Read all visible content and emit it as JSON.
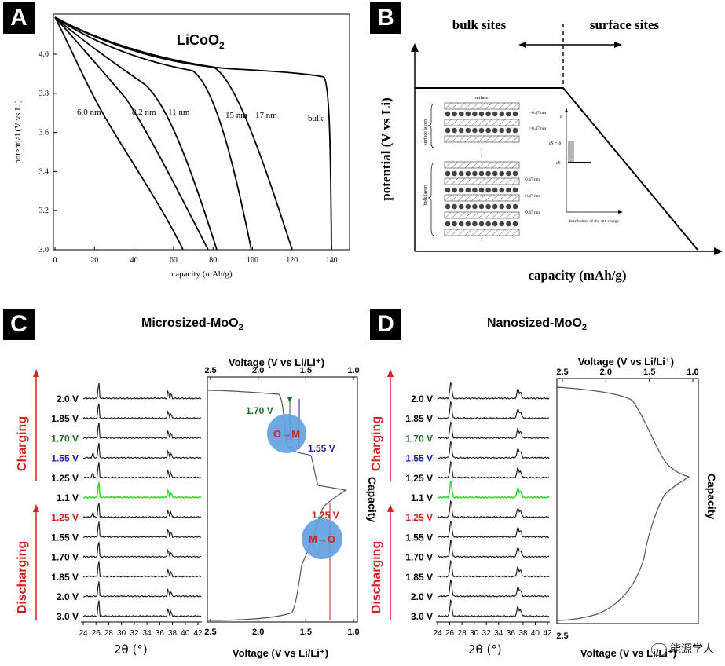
{
  "panelA": {
    "tag": "A",
    "title": "LiCoO",
    "title_sub": "2",
    "xlabel": "capacity (mAh/g)",
    "ylabel": "potential (V vs Li)",
    "xticks": [
      "0",
      "20",
      "40",
      "60",
      "80",
      "100",
      "120",
      "140"
    ],
    "yticks": [
      "3.0",
      "3.2",
      "3.4",
      "3.6",
      "3.8",
      "4.0"
    ],
    "curve_labels": [
      "6.0 nm",
      "8.2 nm",
      "11 nm",
      "15 nm",
      "17 nm",
      "bulk"
    ]
  },
  "panelB": {
    "tag": "B",
    "bulk_label": "bulk sites",
    "surface_label": "surface sites",
    "xlabel": "capacity (mAh/g)",
    "ylabel": "potential (V vs Li)",
    "inset": {
      "surface": "surface",
      "surface_layers": "surface layers",
      "bulk_layers": "bulk layers",
      "spacings": [
        ">0.47 nm",
        ">0.47 nm",
        "0.47 nm",
        "0.47 nm",
        "0.47 nm"
      ],
      "eps": "ε",
      "eps_sd": "εS + δ",
      "eps_s": "εS",
      "dist_label": "distribution of the site energy"
    }
  },
  "panelC": {
    "tag": "C",
    "title": "Microsized-MoO",
    "title_sub": "2",
    "top_axis_label": "Voltage (V vs Li/Li⁺)",
    "bottom_axis_label": "Voltage (V vs Li/Li⁺)",
    "v_ticks": [
      "2.5",
      "2.0",
      "1.5",
      "1.0"
    ],
    "two_theta_ticks": [
      "24",
      "26",
      "28",
      "30",
      "32",
      "34",
      "36",
      "38",
      "40",
      "42"
    ],
    "two_theta_label": "2θ (°)",
    "capacity_label": "Capacity",
    "charging": "Charging",
    "discharging": "Discharging",
    "voltages": [
      "2.0 V",
      "1.85 V",
      "1.70 V",
      "1.55 V",
      "1.25 V",
      "1.1 V",
      "1.25 V",
      "1.55 V",
      "1.70 V",
      "1.85 V",
      "2.0 V",
      "3.0 V"
    ],
    "annot_170": "1.70 V",
    "annot_155": "1.55 V",
    "annot_125": "1.25 V",
    "circle_om": "O→M",
    "circle_mo": "M→O"
  },
  "panelD": {
    "tag": "D",
    "title": "Nanosized-MoO",
    "title_sub": "2",
    "top_axis_label": "Voltage (V vs Li/Li⁺)",
    "bottom_axis_label": "Voltage (V vs Li/Li⁺)",
    "v_ticks": [
      "2.5",
      "2.0",
      "1.5",
      "1.0"
    ],
    "bottom_tick": "2.5",
    "two_theta_ticks": [
      "24",
      "26",
      "28",
      "30",
      "32",
      "34",
      "36",
      "38",
      "40",
      "42"
    ],
    "two_theta_label": "2θ (°)",
    "capacity_label": "Capacity",
    "charging": "Charging",
    "discharging": "Discharging",
    "voltages": [
      "2.0 V",
      "1.85 V",
      "1.70 V",
      "1.55 V",
      "1.25 V",
      "1.1 V",
      "1.25 V",
      "1.55 V",
      "1.70 V",
      "1.85 V",
      "2.0 V",
      "3.0 V"
    ]
  },
  "colors": {
    "green": "#1f6b2a",
    "blue": "#1c1ca8",
    "red": "#d61f1f",
    "highlight_green": "#33dd33",
    "circle": "#5f9fe0"
  },
  "watermark": "能源学人"
}
